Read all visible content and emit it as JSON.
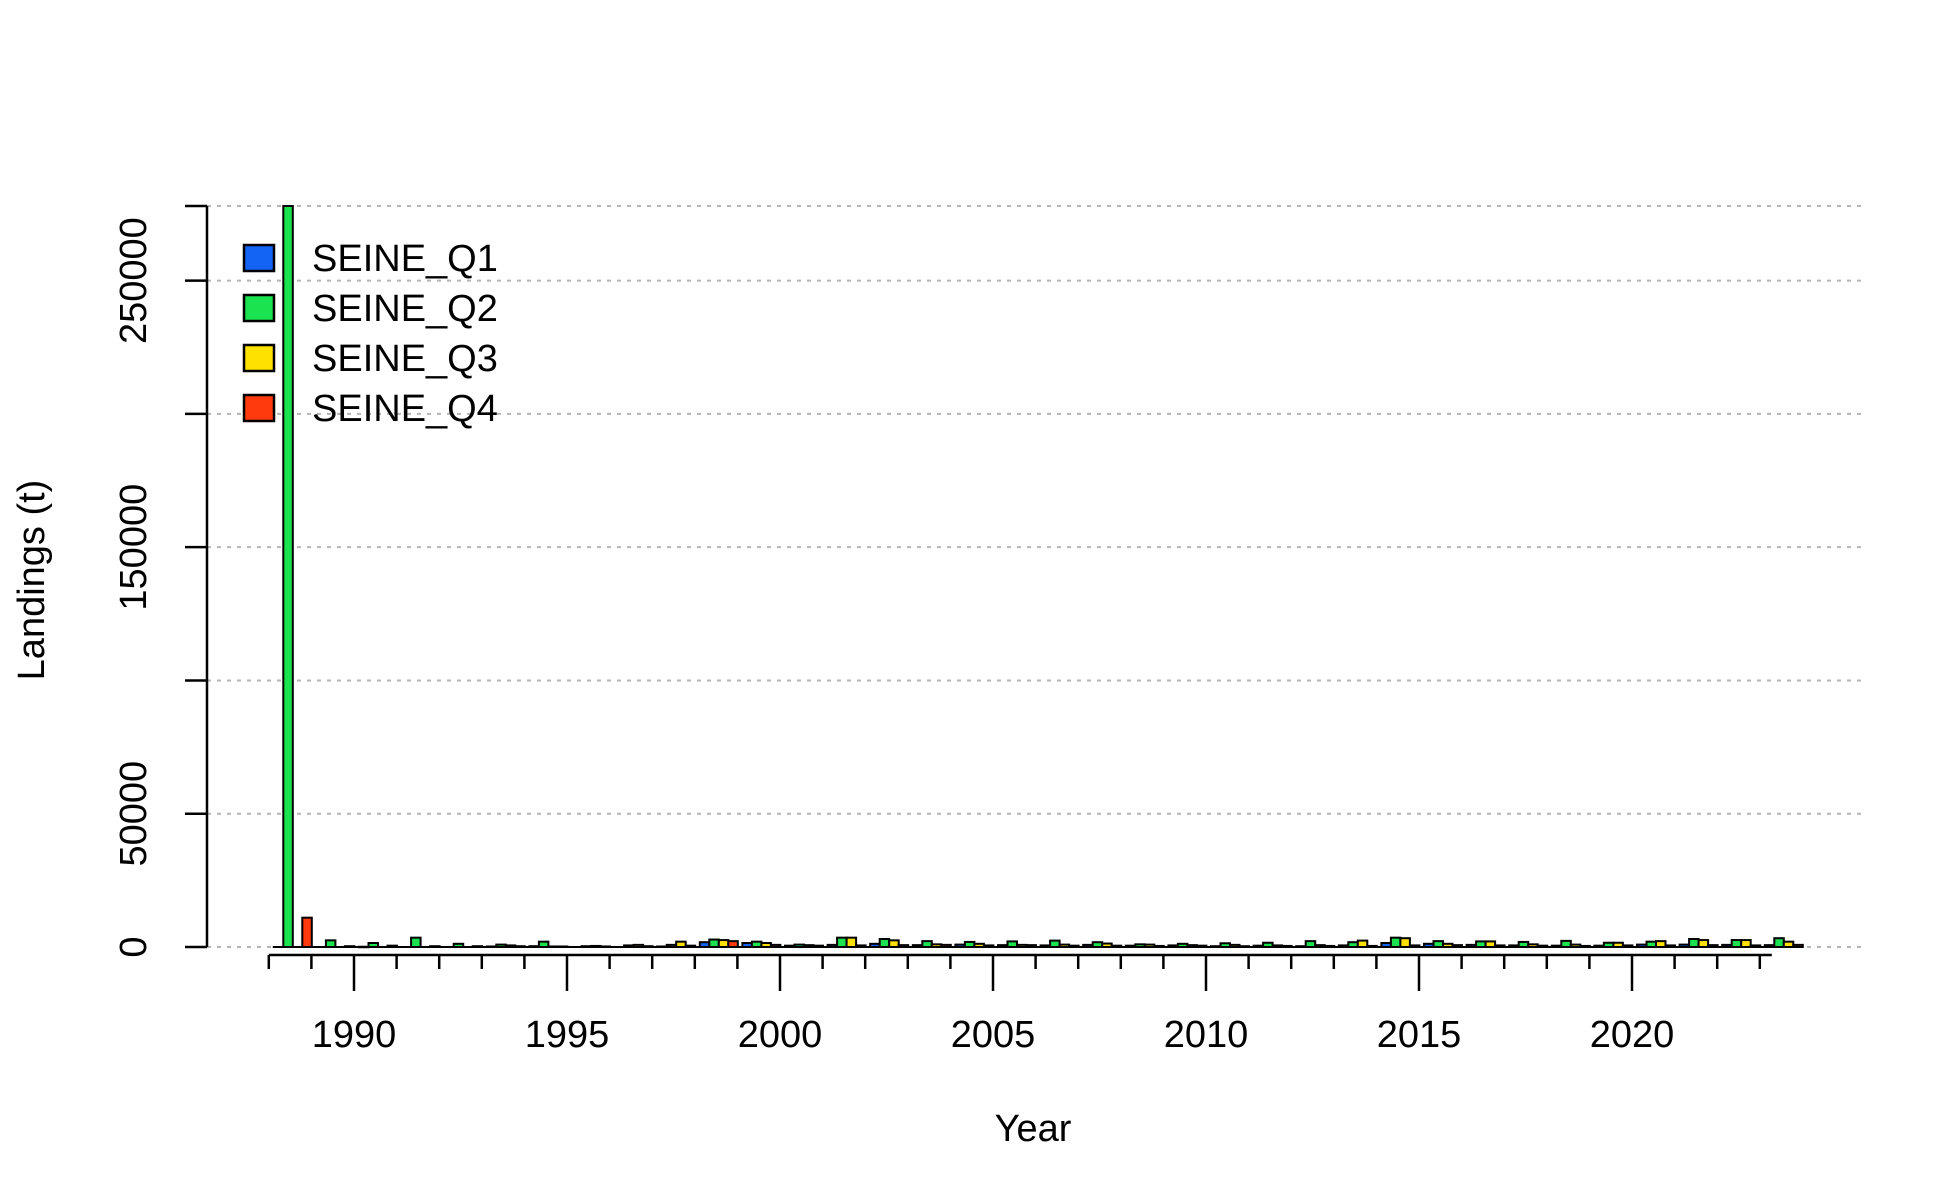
{
  "chart_data": {
    "type": "bar",
    "xlabel": "Year",
    "ylabel": "Landings (t)",
    "ylim": [
      0,
      278000
    ],
    "grid": "horizontal-dotted",
    "legend_placement": "top-left",
    "y_ticks": [
      0,
      50000,
      150000,
      250000
    ],
    "y_tick_labels": [
      "0",
      "50000",
      "150000",
      "250000"
    ],
    "y_minor_ticks": [
      100000,
      200000
    ],
    "x_tick_labels": [
      "1990",
      "1995",
      "2000",
      "2005",
      "2010",
      "2015",
      "2020"
    ],
    "categories": [
      1988,
      1989,
      1990,
      1991,
      1992,
      1993,
      1994,
      1995,
      1996,
      1997,
      1998,
      1999,
      2000,
      2001,
      2002,
      2003,
      2004,
      2005,
      2006,
      2007,
      2008,
      2009,
      2010,
      2011,
      2012,
      2013,
      2014,
      2015,
      2016,
      2017,
      2018,
      2019,
      2020,
      2021,
      2022,
      2023
    ],
    "series": [
      {
        "name": "SEINE_Q1",
        "color": "#1464F4",
        "values": [
          0,
          0,
          100,
          0,
          0,
          200,
          300,
          0,
          0,
          200,
          1800,
          1500,
          500,
          800,
          1200,
          700,
          900,
          700,
          600,
          800,
          500,
          600,
          300,
          500,
          300,
          600,
          1500,
          1200,
          800,
          600,
          500,
          500,
          900,
          900,
          800,
          700
        ]
      },
      {
        "name": "SEINE_Q2",
        "color": "#1AE34F",
        "values": [
          278000,
          2500,
          1500,
          3500,
          1200,
          900,
          2000,
          300,
          600,
          800,
          2800,
          2000,
          900,
          3500,
          3000,
          2200,
          1900,
          2100,
          2400,
          1800,
          1000,
          1200,
          1400,
          1600,
          2200,
          1800,
          3500,
          2200,
          2100,
          1900,
          2300,
          1600,
          2000,
          3000,
          2600,
          3300
        ]
      },
      {
        "name": "SEINE_Q3",
        "color": "#FFE100",
        "values": [
          0,
          0,
          0,
          0,
          0,
          600,
          200,
          400,
          800,
          2000,
          2600,
          1500,
          700,
          3500,
          2500,
          1000,
          1200,
          800,
          900,
          1300,
          900,
          700,
          800,
          600,
          700,
          2400,
          3300,
          1200,
          2100,
          1000,
          900,
          1600,
          2200,
          2600,
          2600,
          2000
        ]
      },
      {
        "name": "SEINE_Q4",
        "color": "#FF3A0C",
        "values": [
          11000,
          300,
          500,
          300,
          300,
          300,
          200,
          200,
          300,
          500,
          2200,
          800,
          500,
          600,
          700,
          800,
          600,
          700,
          500,
          500,
          400,
          500,
          300,
          400,
          400,
          400,
          600,
          700,
          600,
          500,
          400,
          600,
          600,
          700,
          600,
          800
        ]
      }
    ]
  }
}
